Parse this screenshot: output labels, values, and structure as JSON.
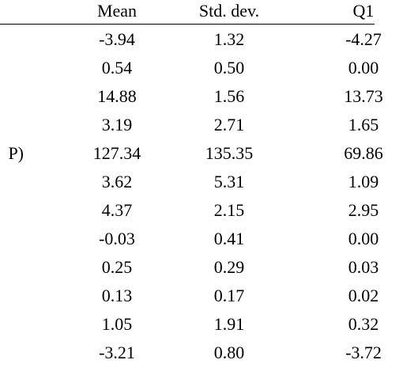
{
  "table": {
    "headers": {
      "mean": "Mean",
      "std": "Std. dev.",
      "q1": "Q1"
    },
    "rows": [
      {
        "var": "",
        "mean": "-3.94",
        "std": "1.32",
        "q1": "-4.27"
      },
      {
        "var": "",
        "mean": "0.54",
        "std": "0.50",
        "q1": "0.00"
      },
      {
        "var": "",
        "mean": "14.88",
        "std": "1.56",
        "q1": "13.73"
      },
      {
        "var": "",
        "mean": "3.19",
        "std": "2.71",
        "q1": "1.65"
      },
      {
        "var": "P)",
        "mean": "127.34",
        "std": "135.35",
        "q1": "69.86"
      },
      {
        "var": "",
        "mean": "3.62",
        "std": "5.31",
        "q1": "1.09"
      },
      {
        "var": "",
        "mean": "4.37",
        "std": "2.15",
        "q1": "2.95"
      },
      {
        "var": "",
        "mean": "-0.03",
        "std": "0.41",
        "q1": "0.00"
      },
      {
        "var": "",
        "mean": "0.25",
        "std": "0.29",
        "q1": "0.03"
      },
      {
        "var": "",
        "mean": "0.13",
        "std": "0.17",
        "q1": "0.02"
      },
      {
        "var": "",
        "mean": "1.05",
        "std": "1.91",
        "q1": "0.32"
      },
      {
        "var": "",
        "mean": "-3.21",
        "std": "0.80",
        "q1": "-3.72"
      }
    ]
  }
}
